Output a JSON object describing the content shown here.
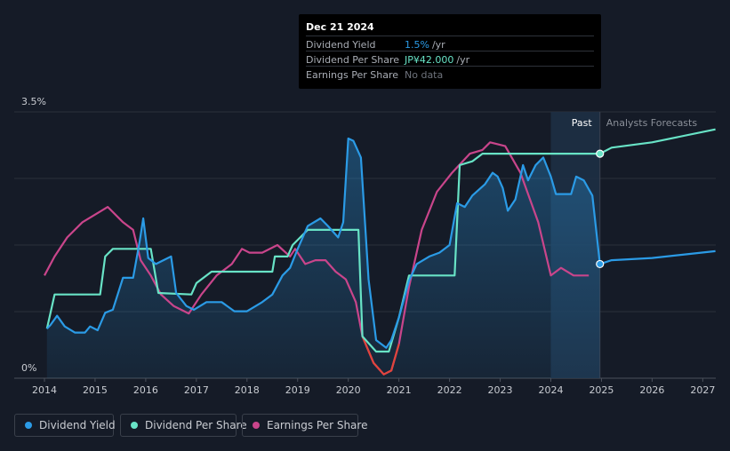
{
  "tooltip": {
    "date": "Dec 21 2024",
    "rows": [
      {
        "label": "Dividend Yield",
        "value": "1.5%",
        "unit": "/yr",
        "color": "#2b9be6"
      },
      {
        "label": "Dividend Per Share",
        "value": "JP¥42.000",
        "unit": "/yr",
        "color": "#68e3c6"
      },
      {
        "label": "Earnings Per Share",
        "value": "No data",
        "unit": "",
        "color": "#6e737c"
      }
    ]
  },
  "legend": [
    {
      "label": "Dividend Yield",
      "color": "#2b9be6"
    },
    {
      "label": "Dividend Per Share",
      "color": "#68e3c6"
    },
    {
      "label": "Earnings Per Share",
      "color": "#c9458b"
    }
  ],
  "chart_data": {
    "type": "line",
    "x_ticks": [
      "2014",
      "2015",
      "2016",
      "2017",
      "2018",
      "2019",
      "2020",
      "2021",
      "2022",
      "2023",
      "2024",
      "2025",
      "2026",
      "2027"
    ],
    "y_ticks": [
      "0%",
      "3.5%"
    ],
    "ylim": [
      0,
      3.5
    ],
    "xlim": [
      2013.95,
      2027.25
    ],
    "region_labels": {
      "past": "Past",
      "forecast": "Analysts Forecasts"
    },
    "past_start": 2024.0,
    "forecast_start": 2024.97,
    "grid": true,
    "legend_position": "bottom-left",
    "series": [
      {
        "name": "Dividend Yield",
        "color": "#2b9be6",
        "unit": "%",
        "points": [
          [
            2014.05,
            0.65
          ],
          [
            2014.12,
            0.7
          ],
          [
            2014.25,
            0.82
          ],
          [
            2014.4,
            0.68
          ],
          [
            2014.6,
            0.6
          ],
          [
            2014.8,
            0.6
          ],
          [
            2014.9,
            0.68
          ],
          [
            2015.05,
            0.63
          ],
          [
            2015.2,
            0.86
          ],
          [
            2015.35,
            0.9
          ],
          [
            2015.55,
            1.32
          ],
          [
            2015.75,
            1.32
          ],
          [
            2015.88,
            1.8
          ],
          [
            2015.95,
            2.1
          ],
          [
            2016.05,
            1.58
          ],
          [
            2016.2,
            1.5
          ],
          [
            2016.35,
            1.55
          ],
          [
            2016.5,
            1.6
          ],
          [
            2016.6,
            1.12
          ],
          [
            2016.8,
            0.95
          ],
          [
            2016.95,
            0.9
          ],
          [
            2017.2,
            1.0
          ],
          [
            2017.5,
            1.0
          ],
          [
            2017.75,
            0.88
          ],
          [
            2018.0,
            0.88
          ],
          [
            2018.3,
            1.0
          ],
          [
            2018.5,
            1.1
          ],
          [
            2018.7,
            1.35
          ],
          [
            2018.85,
            1.45
          ],
          [
            2019.0,
            1.7
          ],
          [
            2019.2,
            2.0
          ],
          [
            2019.45,
            2.1
          ],
          [
            2019.6,
            2.0
          ],
          [
            2019.8,
            1.85
          ],
          [
            2019.9,
            2.05
          ],
          [
            2020.0,
            3.15
          ],
          [
            2020.1,
            3.12
          ],
          [
            2020.25,
            2.9
          ],
          [
            2020.4,
            1.3
          ],
          [
            2020.55,
            0.5
          ],
          [
            2020.75,
            0.4
          ],
          [
            2020.85,
            0.5
          ],
          [
            2021.0,
            0.8
          ],
          [
            2021.2,
            1.28
          ],
          [
            2021.35,
            1.5
          ],
          [
            2021.6,
            1.6
          ],
          [
            2021.8,
            1.65
          ],
          [
            2022.0,
            1.75
          ],
          [
            2022.15,
            2.3
          ],
          [
            2022.3,
            2.25
          ],
          [
            2022.45,
            2.4
          ],
          [
            2022.7,
            2.55
          ],
          [
            2022.85,
            2.7
          ],
          [
            2022.95,
            2.65
          ],
          [
            2023.05,
            2.5
          ],
          [
            2023.15,
            2.2
          ],
          [
            2023.3,
            2.35
          ],
          [
            2023.45,
            2.8
          ],
          [
            2023.55,
            2.6
          ],
          [
            2023.7,
            2.8
          ],
          [
            2023.85,
            2.9
          ],
          [
            2024.0,
            2.65
          ],
          [
            2024.1,
            2.42
          ],
          [
            2024.4,
            2.42
          ],
          [
            2024.5,
            2.65
          ],
          [
            2024.65,
            2.6
          ],
          [
            2024.82,
            2.4
          ],
          [
            2024.97,
            1.5
          ],
          [
            2025.2,
            1.55
          ],
          [
            2026.0,
            1.58
          ],
          [
            2027.25,
            1.67
          ]
        ]
      },
      {
        "name": "Dividend Per Share",
        "color": "#68e3c6",
        "unit": "JP¥",
        "points": [
          [
            2014.05,
            0.65
          ],
          [
            2014.2,
            1.1
          ],
          [
            2015.1,
            1.1
          ],
          [
            2015.2,
            1.6
          ],
          [
            2015.35,
            1.7
          ],
          [
            2016.1,
            1.7
          ],
          [
            2016.25,
            1.12
          ],
          [
            2016.9,
            1.1
          ],
          [
            2017.0,
            1.25
          ],
          [
            2017.3,
            1.4
          ],
          [
            2018.05,
            1.4
          ],
          [
            2018.5,
            1.4
          ],
          [
            2018.55,
            1.6
          ],
          [
            2018.8,
            1.6
          ],
          [
            2018.9,
            1.75
          ],
          [
            2019.2,
            1.95
          ],
          [
            2020.2,
            1.95
          ],
          [
            2020.28,
            0.55
          ],
          [
            2020.55,
            0.35
          ],
          [
            2020.8,
            0.35
          ],
          [
            2021.0,
            0.8
          ],
          [
            2021.2,
            1.35
          ],
          [
            2022.1,
            1.35
          ],
          [
            2022.2,
            2.8
          ],
          [
            2022.45,
            2.85
          ],
          [
            2022.65,
            2.95
          ],
          [
            2024.97,
            2.95
          ],
          [
            2025.2,
            3.03
          ],
          [
            2026.0,
            3.1
          ],
          [
            2027.25,
            3.27
          ]
        ]
      },
      {
        "name": "Earnings Per Share",
        "color": "#c9458b",
        "unit": "JP¥",
        "points": [
          [
            2014.0,
            1.35
          ],
          [
            2014.2,
            1.6
          ],
          [
            2014.45,
            1.85
          ],
          [
            2014.75,
            2.05
          ],
          [
            2015.0,
            2.15
          ],
          [
            2015.25,
            2.25
          ],
          [
            2015.55,
            2.05
          ],
          [
            2015.75,
            1.95
          ],
          [
            2015.9,
            1.55
          ],
          [
            2016.1,
            1.35
          ],
          [
            2016.3,
            1.1
          ],
          [
            2016.55,
            0.95
          ],
          [
            2016.85,
            0.85
          ],
          [
            2017.1,
            1.1
          ],
          [
            2017.4,
            1.35
          ],
          [
            2017.7,
            1.5
          ],
          [
            2017.9,
            1.7
          ],
          [
            2018.05,
            1.65
          ],
          [
            2018.3,
            1.65
          ],
          [
            2018.6,
            1.75
          ],
          [
            2018.85,
            1.6
          ],
          [
            2018.95,
            1.7
          ],
          [
            2019.15,
            1.5
          ],
          [
            2019.35,
            1.55
          ],
          [
            2019.55,
            1.55
          ],
          [
            2019.75,
            1.4
          ],
          [
            2019.95,
            1.3
          ],
          [
            2020.15,
            1.0
          ],
          [
            2020.28,
            0.55
          ],
          [
            2020.5,
            0.2
          ],
          [
            2020.7,
            0.05
          ],
          [
            2020.85,
            0.1
          ],
          [
            2021.0,
            0.45
          ],
          [
            2021.2,
            1.2
          ],
          [
            2021.45,
            1.95
          ],
          [
            2021.75,
            2.45
          ],
          [
            2022.05,
            2.7
          ],
          [
            2022.4,
            2.95
          ],
          [
            2022.65,
            3.0
          ],
          [
            2022.8,
            3.1
          ],
          [
            2023.1,
            3.05
          ],
          [
            2023.4,
            2.7
          ],
          [
            2023.75,
            2.05
          ],
          [
            2024.0,
            1.35
          ],
          [
            2024.2,
            1.45
          ],
          [
            2024.45,
            1.35
          ],
          [
            2024.75,
            1.35
          ]
        ]
      }
    ]
  }
}
